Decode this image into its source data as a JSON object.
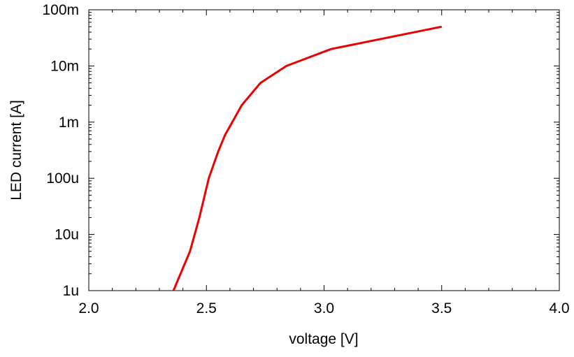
{
  "chart_data": {
    "type": "line",
    "xlabel": "voltage [V]",
    "ylabel": "LED current [A]",
    "xlim": [
      2.0,
      4.0
    ],
    "ylim": [
      1e-06,
      0.1
    ],
    "yscale": "log",
    "grid": false,
    "x_ticks": [
      2.0,
      2.5,
      3.0,
      3.5,
      4.0
    ],
    "x_tick_labels": [
      "2.0",
      "2.5",
      "3.0",
      "3.5",
      "4.0"
    ],
    "y_ticks": [
      1e-06,
      1e-05,
      0.0001,
      0.001,
      0.01,
      0.1
    ],
    "y_tick_labels": [
      "1u",
      "10u",
      "100u",
      "1m",
      "10m",
      "100m"
    ],
    "series": [
      {
        "color": "#ee0000",
        "x": [
          2.36,
          2.39,
          2.43,
          2.47,
          2.51,
          2.55,
          2.58,
          2.61,
          2.65,
          2.73,
          2.84,
          3.03,
          3.5
        ],
        "y": [
          1e-06,
          2e-06,
          5e-06,
          2e-05,
          0.0001,
          0.0003,
          0.0006,
          0.001,
          0.002,
          0.005,
          0.01,
          0.02,
          0.05
        ]
      }
    ]
  }
}
